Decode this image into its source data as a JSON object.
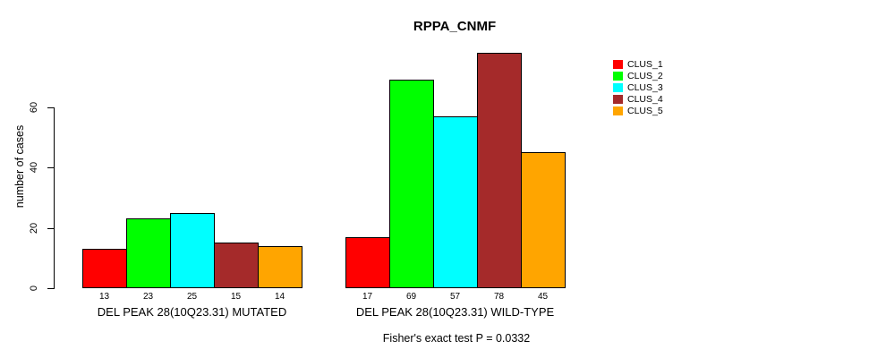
{
  "chart_data": {
    "type": "bar",
    "title": "RPPA_CNMF",
    "ylabel": "number of cases",
    "xlabel": "",
    "ylim": [
      0,
      80
    ],
    "yticks": [
      0,
      20,
      40,
      60
    ],
    "grid": false,
    "legend_position": "right",
    "series": [
      {
        "name": "CLUS_1",
        "color": "#FF0000"
      },
      {
        "name": "CLUS_2",
        "color": "#00FF00"
      },
      {
        "name": "CLUS_3",
        "color": "#00FFFF"
      },
      {
        "name": "CLUS_4",
        "color": "#A52A2A"
      },
      {
        "name": "CLUS_5",
        "color": "#FFA500"
      }
    ],
    "groups": [
      {
        "label": "DEL PEAK 28(10Q23.31) MUTATED",
        "values": [
          13,
          23,
          25,
          15,
          14
        ]
      },
      {
        "label": "DEL PEAK 28(10Q23.31) WILD-TYPE",
        "values": [
          17,
          69,
          57,
          78,
          45
        ]
      }
    ],
    "value_labels_shown": true,
    "caption": "Fisher's exact test P = 0.0332"
  }
}
